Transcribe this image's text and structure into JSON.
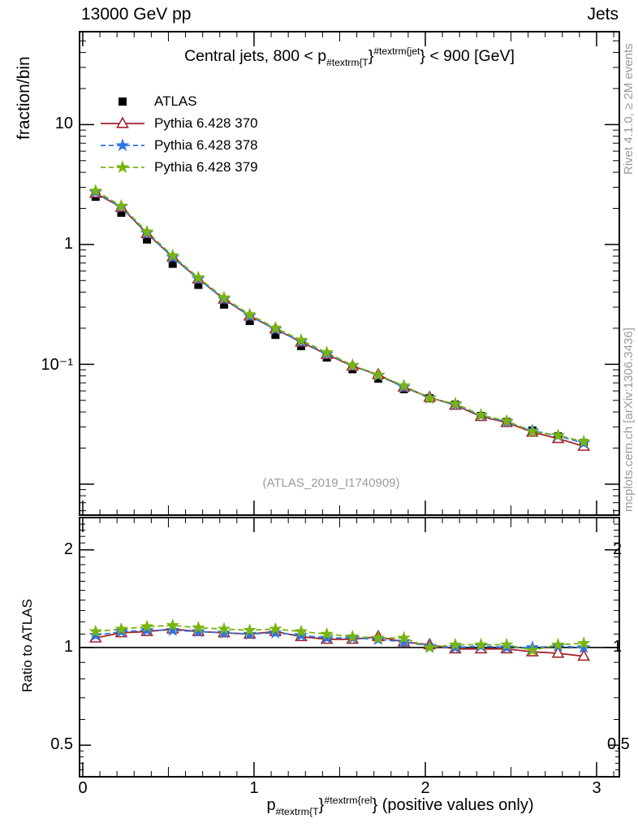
{
  "header": {
    "left": "13000 GeV pp",
    "right": "Jets"
  },
  "plot_title": {
    "pre": "Central jets, 800 < p",
    "sub": "#textrm{T",
    "brace1": "}",
    "sup": "#textrm{jet",
    "brace2": "}",
    "post": " < 900 [GeV]"
  },
  "xlabel": {
    "pre": "p",
    "sub": "#textrm{T",
    "brace1": "}",
    "sup": "#textrm{rel",
    "brace2": "}",
    "post": " (positive values only)"
  },
  "ylabel_main": "fraction/bin",
  "ylabel_ratio": "Ratio to ATLAS",
  "watermark": "(ATLAS_2019_I1740909)",
  "side_text": {
    "top": "Rivet 4.1.0, ≥ 2M events",
    "bottom": "mcplots.cern.ch [arXiv:1306.3436]"
  },
  "colors": {
    "red": "#a2232b",
    "blue": "#2b76e8",
    "green": "#79b410",
    "gray": "#9a9a9a",
    "black": "#000000"
  },
  "legend": [
    {
      "label": "ATLAS",
      "marker": "square",
      "color": "#000000",
      "line": "none"
    },
    {
      "label": "Pythia 6.428 370",
      "marker": "triangle-open",
      "color": "#a2232b",
      "line": "solid"
    },
    {
      "label": "Pythia 6.428 378",
      "marker": "star",
      "color": "#2b76e8",
      "line": "dashed"
    },
    {
      "label": "Pythia 6.428 379",
      "marker": "star",
      "color": "#79b410",
      "line": "dashed"
    }
  ],
  "axis_labels": {
    "main_y": [
      {
        "v": 10,
        "t": "10"
      },
      {
        "v": 1,
        "t": "1"
      },
      {
        "v": 0.1,
        "t": "10⁻¹"
      }
    ],
    "ratio_y": [
      {
        "v": 2,
        "t": "2"
      },
      {
        "v": 1,
        "t": "1"
      },
      {
        "v": 0.5,
        "t": "0.5"
      }
    ],
    "x": [
      "0",
      "1",
      "2",
      "3"
    ]
  },
  "chart_data": {
    "type": "line",
    "title": "Central jets, 800 < pT^jet < 900 [GeV]",
    "xlabel": "pT^rel (positive values only)",
    "ylabel": "fraction/bin",
    "ratio_ylabel": "Ratio to ATLAS",
    "bin_width": 0.15,
    "x": [
      0.075,
      0.225,
      0.375,
      0.525,
      0.675,
      0.825,
      0.975,
      1.125,
      1.275,
      1.425,
      1.575,
      1.725,
      1.875,
      2.025,
      2.175,
      2.325,
      2.475,
      2.625,
      2.775,
      2.925
    ],
    "series": [
      {
        "name": "ATLAS",
        "marker": "square",
        "color": "#000000",
        "line": "none",
        "values": [
          2.5,
          1.84,
          1.1,
          0.69,
          0.46,
          0.315,
          0.23,
          0.176,
          0.142,
          0.114,
          0.091,
          0.076,
          0.062,
          0.052,
          0.046,
          0.037,
          0.033,
          0.028,
          0.025,
          0.022
        ]
      },
      {
        "name": "Pythia 6.428 370",
        "marker": "triangle-open",
        "color": "#a2232b",
        "line": "solid",
        "ratio_to_atlas": [
          1.07,
          1.11,
          1.12,
          1.14,
          1.12,
          1.11,
          1.1,
          1.12,
          1.08,
          1.06,
          1.06,
          1.08,
          1.04,
          1.02,
          0.99,
          0.99,
          0.99,
          0.97,
          0.96,
          0.94
        ]
      },
      {
        "name": "Pythia 6.428 378",
        "marker": "star",
        "color": "#2b76e8",
        "line": "dashed",
        "ratio_to_atlas": [
          1.09,
          1.12,
          1.13,
          1.13,
          1.12,
          1.11,
          1.1,
          1.11,
          1.09,
          1.07,
          1.07,
          1.06,
          1.04,
          1.01,
          1.0,
          1.01,
          1.0,
          1.0,
          1.01,
          1.0
        ]
      },
      {
        "name": "Pythia 6.428 379",
        "marker": "star",
        "color": "#79b410",
        "line": "dashed",
        "ratio_to_atlas": [
          1.12,
          1.14,
          1.16,
          1.17,
          1.15,
          1.14,
          1.13,
          1.14,
          1.12,
          1.1,
          1.08,
          1.07,
          1.07,
          1.0,
          1.02,
          1.02,
          1.02,
          0.98,
          1.02,
          1.03
        ]
      }
    ],
    "main_axis": {
      "xmin": -0.014,
      "xmax": 3.128,
      "ymin": 0.0056,
      "ymax": 58.7,
      "yscale": "log",
      "x_minor": 0.1,
      "x_medium": 0.5,
      "x_major": 1.0
    },
    "ratio_axis": {
      "ymin": 0.402,
      "ymax": 2.5,
      "yscale": "log",
      "ref": 1,
      "majors": [
        0.5,
        1,
        2
      ],
      "minors": [
        0.42,
        0.44,
        0.46,
        0.48,
        0.6,
        0.7,
        0.8,
        0.9,
        1.1,
        1.2,
        1.3,
        1.4,
        1.5,
        1.6,
        1.7,
        1.8,
        1.9,
        2.1,
        2.2,
        2.3,
        2.4
      ]
    }
  }
}
